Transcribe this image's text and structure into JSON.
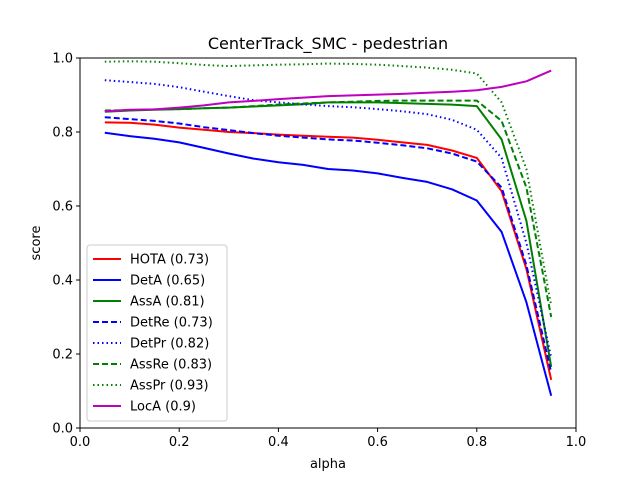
{
  "chart_data": {
    "type": "line",
    "title": "CenterTrack_SMC - pedestrian",
    "xlabel": "alpha",
    "ylabel": "score",
    "xlim": [
      0.0,
      1.0
    ],
    "ylim": [
      0.0,
      1.0
    ],
    "xticks": [
      "0.0",
      "0.2",
      "0.4",
      "0.6",
      "0.8",
      "1.0"
    ],
    "yticks": [
      "0.0",
      "0.2",
      "0.4",
      "0.6",
      "0.8",
      "1.0"
    ],
    "grid": false,
    "legend_position": "lower-left",
    "x": [
      0.05,
      0.1,
      0.15,
      0.2,
      0.25,
      0.3,
      0.35,
      0.4,
      0.45,
      0.5,
      0.55,
      0.6,
      0.65,
      0.7,
      0.75,
      0.8,
      0.85,
      0.9,
      0.95
    ],
    "series": [
      {
        "name": "HOTA (0.73)",
        "color": "#ff0000",
        "dash": "solid",
        "values": [
          0.826,
          0.825,
          0.82,
          0.812,
          0.806,
          0.8,
          0.797,
          0.793,
          0.79,
          0.787,
          0.785,
          0.779,
          0.772,
          0.765,
          0.75,
          0.73,
          0.64,
          0.43,
          0.13
        ]
      },
      {
        "name": "DetA (0.65)",
        "color": "#0000ff",
        "dash": "solid",
        "values": [
          0.798,
          0.789,
          0.782,
          0.772,
          0.757,
          0.742,
          0.728,
          0.718,
          0.711,
          0.7,
          0.696,
          0.688,
          0.676,
          0.665,
          0.645,
          0.615,
          0.53,
          0.34,
          0.087
        ]
      },
      {
        "name": "AssA (0.81)",
        "color": "#008000",
        "dash": "solid",
        "values": [
          0.855,
          0.858,
          0.86,
          0.862,
          0.864,
          0.866,
          0.869,
          0.872,
          0.875,
          0.88,
          0.88,
          0.88,
          0.878,
          0.876,
          0.874,
          0.87,
          0.78,
          0.56,
          0.165
        ]
      },
      {
        "name": "DetRe (0.73)",
        "color": "#0000ff",
        "dash": "dashed",
        "values": [
          0.84,
          0.835,
          0.83,
          0.823,
          0.813,
          0.805,
          0.797,
          0.79,
          0.785,
          0.78,
          0.777,
          0.771,
          0.764,
          0.756,
          0.742,
          0.72,
          0.65,
          0.44,
          0.15
        ]
      },
      {
        "name": "DetPr (0.82)",
        "color": "#0000ff",
        "dash": "dotted",
        "values": [
          0.94,
          0.935,
          0.93,
          0.921,
          0.909,
          0.897,
          0.886,
          0.88,
          0.875,
          0.87,
          0.867,
          0.862,
          0.856,
          0.848,
          0.833,
          0.806,
          0.73,
          0.5,
          0.19
        ]
      },
      {
        "name": "AssRe (0.83)",
        "color": "#008000",
        "dash": "dashed",
        "values": [
          0.858,
          0.859,
          0.861,
          0.862,
          0.864,
          0.866,
          0.87,
          0.874,
          0.877,
          0.88,
          0.882,
          0.884,
          0.885,
          0.885,
          0.885,
          0.885,
          0.83,
          0.65,
          0.3
        ]
      },
      {
        "name": "AssPr (0.93)",
        "color": "#008000",
        "dash": "dotted",
        "values": [
          0.99,
          0.991,
          0.99,
          0.986,
          0.981,
          0.978,
          0.98,
          0.982,
          0.983,
          0.985,
          0.984,
          0.982,
          0.978,
          0.974,
          0.968,
          0.958,
          0.88,
          0.7,
          0.33
        ]
      },
      {
        "name": "LocA (0.9)",
        "color": "#bf00bf",
        "dash": "solid",
        "values": [
          0.856,
          0.86,
          0.861,
          0.866,
          0.872,
          0.88,
          0.884,
          0.889,
          0.893,
          0.897,
          0.899,
          0.901,
          0.903,
          0.906,
          0.909,
          0.913,
          0.922,
          0.937,
          0.966
        ]
      }
    ]
  }
}
